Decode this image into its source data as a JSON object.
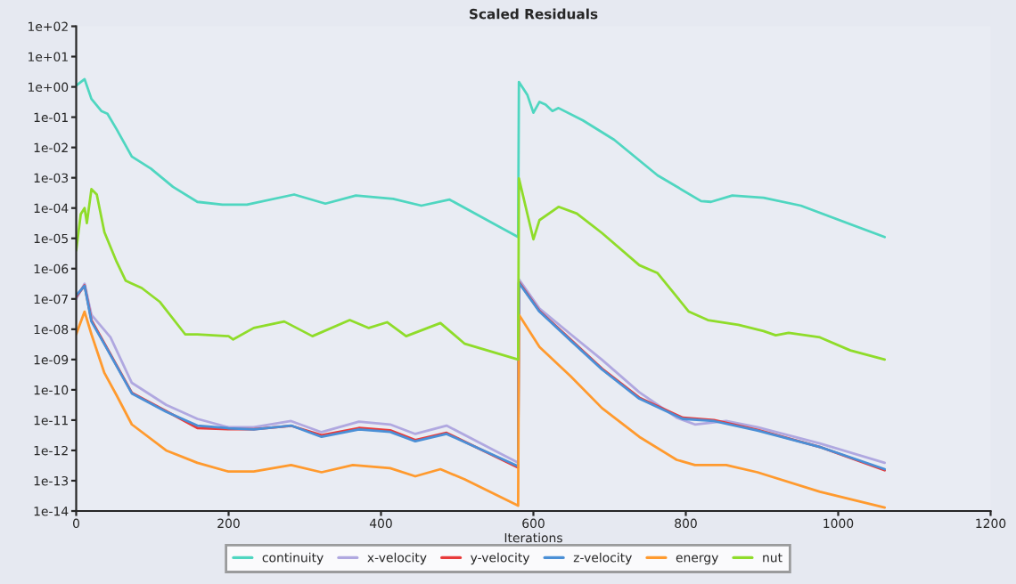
{
  "chart_data": {
    "type": "line",
    "title": "Scaled Residuals",
    "xlabel": "Iterations",
    "xlim": [
      0,
      1200
    ],
    "xticks": [
      0,
      200,
      400,
      600,
      800,
      1000,
      1200
    ],
    "ylim": [
      1e-14,
      100
    ],
    "log": "y",
    "yticks": [
      {
        "value": 1e-14,
        "label": "1e-14"
      },
      {
        "value": 1e-13,
        "label": "1e-13"
      },
      {
        "value": 1e-12,
        "label": "1e-12"
      },
      {
        "value": 1e-11,
        "label": "1e-11"
      },
      {
        "value": 1e-10,
        "label": "1e-10"
      },
      {
        "value": 1e-09,
        "label": "1e-09"
      },
      {
        "value": 1e-08,
        "label": "1e-08"
      },
      {
        "value": 1e-07,
        "label": "1e-07"
      },
      {
        "value": 1e-06,
        "label": "1e-06"
      },
      {
        "value": 1e-05,
        "label": "1e-05"
      },
      {
        "value": 0.0001,
        "label": "1e-04"
      },
      {
        "value": 0.001,
        "label": "1e-03"
      },
      {
        "value": 0.01,
        "label": "1e-02"
      },
      {
        "value": 0.1,
        "label": "1e-01"
      },
      {
        "value": 1,
        "label": "1e+00"
      },
      {
        "value": 10,
        "label": "1e+01"
      },
      {
        "value": 100,
        "label": "1e+02"
      }
    ],
    "grid": false,
    "legend": "bottom",
    "marker": "none",
    "line_style": "solid",
    "series": [
      {
        "name": "continuity",
        "color": "#4fd6c0",
        "x": [
          0,
          11,
          20,
          33,
          41,
          53,
          73,
          98,
          127,
          159,
          192,
          224,
          286,
          327,
          367,
          416,
          453,
          490,
          580,
          581,
          592,
          600,
          608,
          616,
          625,
          633,
          665,
          706,
          763,
          820,
          833,
          861,
          902,
          951,
          1061
        ],
        "values": [
          1.1,
          1.8,
          0.4,
          0.16,
          0.13,
          0.04,
          0.005,
          0.002,
          0.0005,
          0.00016,
          0.00013,
          0.00013,
          0.00028,
          0.00014,
          0.00026,
          0.0002,
          0.00012,
          0.00019,
          1.1e-05,
          1.45,
          0.55,
          0.14,
          0.32,
          0.26,
          0.16,
          0.2,
          0.078,
          0.018,
          0.0012,
          0.00017,
          0.00016,
          0.00026,
          0.00022,
          0.00012,
          1.1e-05
        ]
      },
      {
        "name": "x-velocity",
        "color": "#b0a8e0",
        "x": [
          0,
          11,
          20,
          45,
          73,
          118,
          159,
          200,
          233,
          282,
          322,
          371,
          412,
          445,
          486,
          580,
          581,
          608,
          649,
          690,
          739,
          788,
          812,
          853,
          894,
          976,
          1061
        ],
        "values": [
          1e-07,
          3.2e-07,
          3e-08,
          5.4e-09,
          1.7e-10,
          3.2e-11,
          1.1e-11,
          5.8e-12,
          5.8e-12,
          9.3e-12,
          4e-12,
          8.9e-12,
          7.2e-12,
          3.5e-12,
          6.6e-12,
          3.9e-13,
          4.4e-07,
          4.8e-08,
          6.8e-09,
          9.8e-10,
          8.3e-11,
          1.2e-11,
          7.2e-12,
          9.3e-12,
          5.8e-12,
          1.7e-12,
          3.9e-13
        ]
      },
      {
        "name": "y-velocity",
        "color": "#e83a3a",
        "x": [
          0,
          11,
          20,
          37,
          73,
          118,
          159,
          200,
          233,
          282,
          322,
          371,
          412,
          445,
          486,
          580,
          581,
          608,
          649,
          690,
          739,
          796,
          837,
          894,
          976,
          1061
        ],
        "values": [
          1.2e-07,
          2.8e-07,
          2e-08,
          3.4e-09,
          8e-11,
          2e-11,
          5.5e-12,
          5e-12,
          5e-12,
          6.5e-12,
          3.2e-12,
          5.5e-12,
          4.6e-12,
          2.2e-12,
          3.8e-12,
          2.7e-13,
          3.6e-07,
          4e-08,
          4.5e-09,
          5e-10,
          5.5e-11,
          1.2e-11,
          1e-11,
          4.8e-12,
          1.3e-12,
          2.2e-13
        ]
      },
      {
        "name": "z-velocity",
        "color": "#4a8fd6",
        "x": [
          0,
          11,
          20,
          37,
          73,
          118,
          159,
          200,
          233,
          282,
          322,
          371,
          412,
          445,
          486,
          580,
          581,
          608,
          649,
          690,
          739,
          796,
          837,
          894,
          976,
          1061
        ],
        "values": [
          1.3e-07,
          2.7e-07,
          1.8e-08,
          3.2e-09,
          7.6e-11,
          1.9e-11,
          6.6e-12,
          5.4e-12,
          4.9e-12,
          6.6e-12,
          2.8e-12,
          4.9e-12,
          4.1e-12,
          2e-12,
          3.5e-12,
          3e-13,
          3.4e-07,
          3.8e-08,
          4.2e-09,
          4.7e-10,
          5.1e-11,
          1.1e-11,
          9.3e-12,
          4.5e-12,
          1.3e-12,
          2.4e-13
        ]
      },
      {
        "name": "energy",
        "color": "#ff9a2e",
        "x": [
          0,
          11,
          20,
          37,
          53,
          73,
          118,
          159,
          200,
          233,
          282,
          322,
          363,
          412,
          445,
          478,
          510,
          580,
          581,
          608,
          649,
          690,
          739,
          788,
          812,
          853,
          894,
          976,
          1061
        ],
        "values": [
          6.8e-09,
          3.8e-08,
          6.8e-09,
          3.6e-10,
          6.6e-11,
          7.2e-12,
          1e-12,
          3.9e-13,
          2e-13,
          2e-13,
          3.3e-13,
          1.9e-13,
          3.3e-13,
          2.6e-13,
          1.4e-13,
          2.4e-13,
          1.1e-13,
          1.5e-14,
          3e-08,
          2.6e-09,
          2.8e-10,
          2.5e-11,
          2.8e-12,
          4.9e-13,
          3.3e-13,
          3.3e-13,
          1.9e-13,
          4.3e-14,
          1.3e-14
        ]
      },
      {
        "name": "nut",
        "color": "#8fdc2a",
        "x": [
          0,
          6,
          11,
          14,
          20,
          27,
          37,
          53,
          65,
          71,
          86,
          110,
          143,
          159,
          200,
          206,
          233,
          273,
          310,
          359,
          384,
          408,
          433,
          478,
          510,
          580,
          581,
          600,
          608,
          633,
          657,
          690,
          739,
          763,
          804,
          829,
          869,
          902,
          918,
          935,
          976,
          1016,
          1061
        ],
        "values": [
          4e-06,
          6.3e-05,
          0.0001,
          3.2e-05,
          0.00042,
          0.00028,
          1.6e-05,
          1.7e-06,
          4e-07,
          3.4e-07,
          2.3e-07,
          7.9e-08,
          6.8e-09,
          6.8e-09,
          5.9e-09,
          4.6e-09,
          1.1e-08,
          1.8e-08,
          5.9e-09,
          2e-08,
          1.1e-08,
          1.7e-08,
          5.9e-09,
          1.6e-08,
          3.3e-09,
          1e-09,
          0.00095,
          9.3e-06,
          4e-05,
          0.00011,
          6.6e-05,
          1.5e-05,
          1.3e-06,
          7.1e-07,
          3.8e-08,
          2e-08,
          1.4e-08,
          8.7e-09,
          6.3e-09,
          7.6e-09,
          5.4e-09,
          2e-09,
          1e-09
        ]
      }
    ]
  }
}
